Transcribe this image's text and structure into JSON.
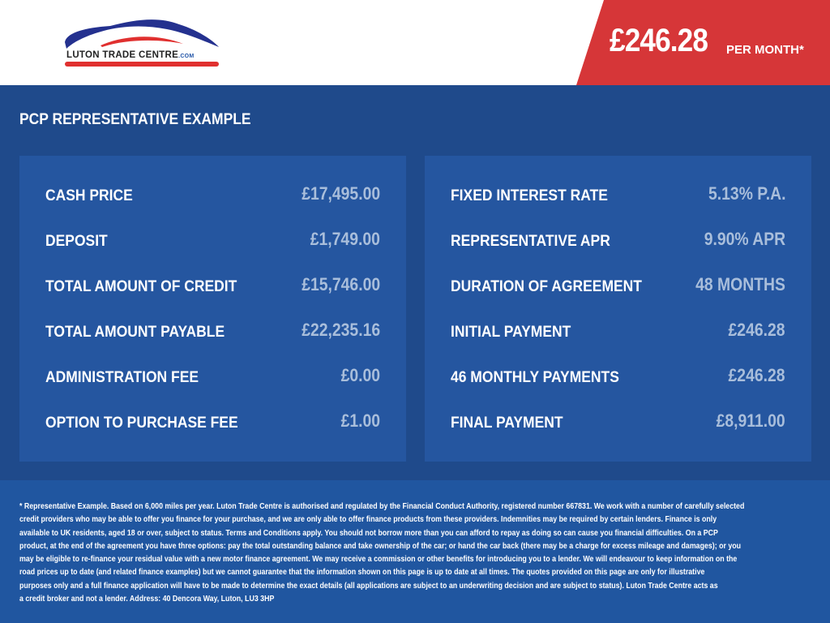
{
  "brand": {
    "logo_text": "LUTON TRADE CENTRE",
    "logo_suffix": ".COM",
    "colors": {
      "red": "#d63638",
      "blue": "#1f4a8b",
      "panel": "#2556a0"
    }
  },
  "header": {
    "price": "£246.28",
    "per_month": "PER MONTH*"
  },
  "section_title": "PCP REPRESENTATIVE EXAMPLE",
  "left_panel": [
    {
      "label": "CASH PRICE",
      "value": "£17,495.00"
    },
    {
      "label": "DEPOSIT",
      "value": "£1,749.00"
    },
    {
      "label": "TOTAL AMOUNT OF CREDIT",
      "value": "£15,746.00"
    },
    {
      "label": "TOTAL AMOUNT PAYABLE",
      "value": "£22,235.16"
    },
    {
      "label": "ADMINISTRATION FEE",
      "value": "£0.00"
    },
    {
      "label": "OPTION TO PURCHASE FEE",
      "value": "£1.00"
    }
  ],
  "right_panel": [
    {
      "label": "FIXED INTEREST RATE",
      "value": "5.13% P.A."
    },
    {
      "label": "REPRESENTATIVE APR",
      "value": "9.90% APR"
    },
    {
      "label": "DURATION OF AGREEMENT",
      "value": "48 MONTHS"
    },
    {
      "label": "INITIAL PAYMENT",
      "value": "£246.28"
    },
    {
      "label": "46 MONTHLY PAYMENTS",
      "value": "£246.28"
    },
    {
      "label": "FINAL PAYMENT",
      "value": "£8,911.00"
    }
  ],
  "footer_lines": [
    "* Representative Example. Based on 6,000 miles per year. Luton Trade Centre is authorised and regulated by the Financial Conduct Authority, registered number 667831. We work with a number of carefully selected",
    "credit providers who may be able to offer you finance for your purchase, and we are only able to offer finance products from these providers. Indemnities may be required by certain lenders. Finance is only",
    "available to UK residents, aged 18 or over, subject to status. Terms and Conditions apply. You should not borrow more than you can afford to repay as doing so can cause you financial difficulties. On a PCP",
    "product, at the end of the agreement you have three options: pay the total outstanding balance and take ownership of the car; or hand the car back (there may be a charge for excess mileage and damages); or you",
    "may be eligible to re-finance your residual value with a new motor finance agreement. We may receive a commission or other benefits for introducing you to a lender. We will endeavour to keep information on the",
    "road prices up to date (and related finance examples) but we cannot guarantee that the information shown on this page is up to date at all times. The quotes provided on this page are only for illustrative",
    "purposes only and a full finance application will have to be made to determine the exact details (all applications are subject to an underwriting decision and are subject to status). Luton Trade Centre acts as",
    "a credit broker and not a lender. Address: 40 Dencora Way, Luton, LU3 3HP"
  ]
}
